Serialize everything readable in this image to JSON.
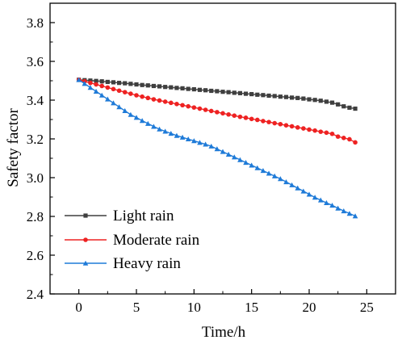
{
  "chart_data": {
    "type": "line",
    "xlabel": "Time/h",
    "ylabel": "Safety factor",
    "xlim": [
      -2.5,
      27.5
    ],
    "ylim": [
      2.4,
      3.9
    ],
    "x_ticks": [
      "0",
      "5",
      "10",
      "15",
      "20",
      "25"
    ],
    "y_ticks": [
      "2.4",
      "2.6",
      "2.8",
      "3.0",
      "3.2",
      "3.4",
      "3.6",
      "3.8"
    ],
    "legend_position": "bottom-left",
    "grid": false,
    "x": [
      0,
      0.5,
      1,
      1.5,
      2,
      2.5,
      3,
      3.5,
      4,
      4.5,
      5,
      5.5,
      6,
      6.5,
      7,
      7.5,
      8,
      8.5,
      9,
      9.5,
      10,
      10.5,
      11,
      11.5,
      12,
      12.5,
      13,
      13.5,
      14,
      14.5,
      15,
      15.5,
      16,
      16.5,
      17,
      17.5,
      18,
      18.5,
      19,
      19.5,
      20,
      20.5,
      21,
      21.5,
      22,
      22.5,
      23,
      23.5,
      24
    ],
    "series": [
      {
        "name": "Light rain",
        "color": "#3f3f3f",
        "marker": "square",
        "values": [
          3.505,
          3.503,
          3.501,
          3.499,
          3.497,
          3.494,
          3.492,
          3.489,
          3.487,
          3.484,
          3.481,
          3.478,
          3.476,
          3.473,
          3.471,
          3.468,
          3.466,
          3.463,
          3.461,
          3.458,
          3.456,
          3.453,
          3.451,
          3.448,
          3.446,
          3.443,
          3.441,
          3.438,
          3.436,
          3.433,
          3.431,
          3.428,
          3.426,
          3.423,
          3.421,
          3.418,
          3.416,
          3.413,
          3.411,
          3.408,
          3.404,
          3.401,
          3.397,
          3.392,
          3.387,
          3.378,
          3.368,
          3.361,
          3.356
        ]
      },
      {
        "name": "Moderate rain",
        "color": "#ee2222",
        "marker": "circle",
        "values": [
          3.505,
          3.497,
          3.489,
          3.481,
          3.473,
          3.465,
          3.457,
          3.449,
          3.441,
          3.433,
          3.425,
          3.418,
          3.411,
          3.404,
          3.398,
          3.392,
          3.386,
          3.38,
          3.374,
          3.368,
          3.362,
          3.356,
          3.35,
          3.344,
          3.338,
          3.332,
          3.326,
          3.32,
          3.314,
          3.309,
          3.303,
          3.298,
          3.292,
          3.287,
          3.281,
          3.276,
          3.27,
          3.265,
          3.259,
          3.254,
          3.248,
          3.243,
          3.237,
          3.232,
          3.226,
          3.212,
          3.205,
          3.198,
          3.182
        ]
      },
      {
        "name": "Heavy rain",
        "color": "#1f7bd8",
        "marker": "triangle",
        "values": [
          3.505,
          3.485,
          3.465,
          3.445,
          3.425,
          3.405,
          3.385,
          3.365,
          3.345,
          3.325,
          3.31,
          3.294,
          3.279,
          3.264,
          3.25,
          3.239,
          3.228,
          3.217,
          3.208,
          3.199,
          3.19,
          3.181,
          3.172,
          3.162,
          3.148,
          3.134,
          3.12,
          3.106,
          3.092,
          3.078,
          3.064,
          3.05,
          3.036,
          3.022,
          3.008,
          2.994,
          2.978,
          2.962,
          2.946,
          2.93,
          2.914,
          2.898,
          2.884,
          2.87,
          2.857,
          2.842,
          2.828,
          2.815,
          2.802
        ]
      }
    ]
  }
}
